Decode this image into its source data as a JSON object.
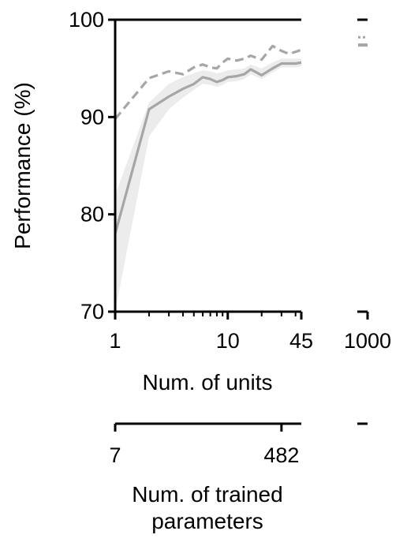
{
  "chart_data": {
    "type": "line",
    "title": "",
    "ylabel": "Performance (%)",
    "xlabel": "Num. of units",
    "x2label_lines": [
      "Num. of trained",
      "parameters"
    ],
    "ylim": [
      70,
      100
    ],
    "xlim": [
      1,
      45
    ],
    "xscale": "log",
    "yticks": [
      70,
      80,
      90,
      100
    ],
    "xticks": [
      {
        "value": 1,
        "label": "1"
      },
      {
        "value": 10,
        "label": "10"
      },
      {
        "value": 45,
        "label": "45"
      }
    ],
    "broken_axis_tick": {
      "value": 1000,
      "label": "1000"
    },
    "x2ticks": [
      {
        "at_units": 1,
        "label": "7"
      },
      {
        "at_units": 30,
        "label": "482"
      }
    ],
    "grid": false,
    "series": [
      {
        "style": "solid",
        "color": "#a6a6a6",
        "x": [
          1,
          2,
          3,
          4,
          5,
          6,
          7,
          8,
          9,
          10,
          12,
          14,
          16,
          20,
          25,
          30,
          35,
          40,
          45
        ],
        "values": [
          78.0,
          90.8,
          92.1,
          92.9,
          93.4,
          94.1,
          93.9,
          93.6,
          93.8,
          94.1,
          94.2,
          94.4,
          94.9,
          94.3,
          95.0,
          95.5,
          95.5,
          95.5,
          95.6
        ],
        "band_lower": [
          69.0,
          88.0,
          90.8,
          92.0,
          92.8,
          93.4,
          93.3,
          93.1,
          93.3,
          93.6,
          93.7,
          93.9,
          94.4,
          93.9,
          94.6,
          95.1,
          95.1,
          95.1,
          95.2
        ],
        "band_upper": [
          82.0,
          91.5,
          93.4,
          94.1,
          94.5,
          94.8,
          94.7,
          94.5,
          94.6,
          94.8,
          94.9,
          95.0,
          95.4,
          95.0,
          95.6,
          96.0,
          96.0,
          96.0,
          96.0
        ]
      },
      {
        "style": "dashed",
        "color": "#a6a6a6",
        "x": [
          1,
          2,
          3,
          4,
          5,
          6,
          7,
          8,
          9,
          10,
          12,
          14,
          16,
          20,
          25,
          30,
          35,
          40,
          45
        ],
        "values": [
          89.8,
          94.0,
          94.7,
          94.4,
          95.1,
          95.4,
          95.1,
          95.0,
          95.6,
          96.0,
          95.8,
          96.0,
          96.3,
          95.9,
          97.3,
          96.8,
          96.5,
          96.7,
          96.9
        ]
      }
    ],
    "broken_axis_points": [
      {
        "style": "dotted",
        "x": 1000,
        "value": 98.2
      },
      {
        "style": "solid",
        "x": 1000,
        "value": 97.4
      }
    ]
  }
}
